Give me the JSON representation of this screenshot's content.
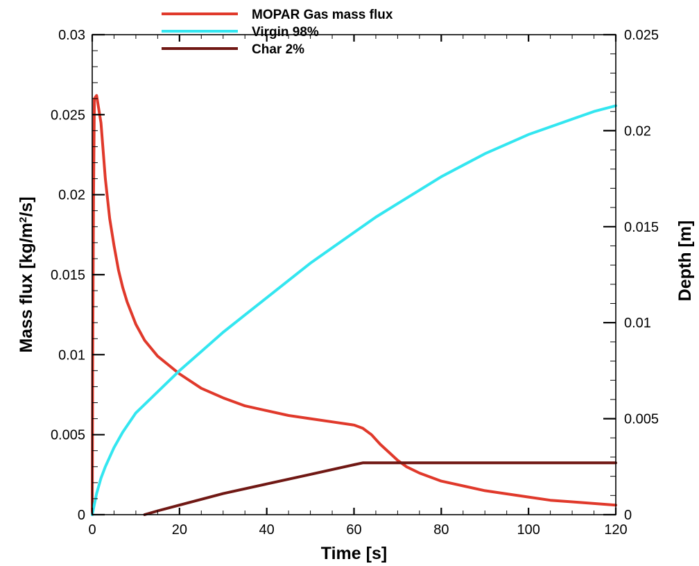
{
  "chart_data": {
    "type": "line",
    "xlabel": "Time [s]",
    "ylabel_left": {
      "prefix": "Mass flux [kg/m",
      "sup": "2",
      "suffix": "/s]"
    },
    "ylabel_right": "Depth [m]",
    "xlim": [
      0,
      120
    ],
    "ylim_left": [
      0,
      0.03
    ],
    "ylim_right": [
      0,
      0.025
    ],
    "x_ticks": [
      0,
      20,
      40,
      60,
      80,
      100,
      120
    ],
    "x_tick_labels": [
      "0",
      "20",
      "40",
      "60",
      "80",
      "100",
      "120"
    ],
    "y_left_ticks": [
      0,
      0.005,
      0.01,
      0.015,
      0.02,
      0.025,
      0.03
    ],
    "y_left_tick_labels": [
      "0",
      "0.005",
      "0.01",
      "0.015",
      "0.02",
      "0.025",
      "0.03"
    ],
    "y_right_ticks": [
      0,
      0.005,
      0.01,
      0.015,
      0.02,
      0.025
    ],
    "y_right_tick_labels": [
      "0",
      "0.005",
      "0.01",
      "0.015",
      "0.02",
      "0.025"
    ],
    "grid": false,
    "legend_position": "top-center",
    "series": [
      {
        "name": "MOPAR Gas mass flux",
        "axis": "left",
        "color": "#e0392b",
        "x": [
          0,
          0.1,
          0.3,
          0.5,
          1,
          2,
          3,
          4,
          5,
          6,
          7,
          8,
          10,
          12,
          15,
          20,
          25,
          30,
          35,
          40,
          45,
          50,
          55,
          60,
          62,
          64,
          66,
          68,
          70,
          72,
          75,
          80,
          85,
          90,
          95,
          100,
          105,
          110,
          115,
          120
        ],
        "y": [
          0,
          0.009,
          0.02,
          0.026,
          0.0262,
          0.0245,
          0.021,
          0.0185,
          0.0168,
          0.0153,
          0.0142,
          0.0133,
          0.0119,
          0.0109,
          0.0099,
          0.0088,
          0.0079,
          0.0073,
          0.0068,
          0.0065,
          0.0062,
          0.006,
          0.0058,
          0.0056,
          0.0054,
          0.005,
          0.0044,
          0.0039,
          0.0034,
          0.003,
          0.0026,
          0.0021,
          0.0018,
          0.0015,
          0.0013,
          0.0011,
          0.0009,
          0.0008,
          0.0007,
          0.0006
        ]
      },
      {
        "name": "Virgin 98%",
        "axis": "right",
        "color": "#33e6f0",
        "x": [
          0,
          1,
          2,
          3,
          5,
          7,
          10,
          15,
          20,
          25,
          30,
          35,
          40,
          45,
          50,
          55,
          60,
          65,
          70,
          75,
          80,
          85,
          90,
          95,
          100,
          105,
          110,
          115,
          120
        ],
        "y": [
          0,
          0.0011,
          0.0019,
          0.0025,
          0.0035,
          0.0043,
          0.0053,
          0.0064,
          0.0075,
          0.0085,
          0.0095,
          0.0104,
          0.0113,
          0.0122,
          0.0131,
          0.0139,
          0.0147,
          0.0155,
          0.0162,
          0.0169,
          0.0176,
          0.0182,
          0.0188,
          0.0193,
          0.0198,
          0.0202,
          0.0206,
          0.021,
          0.0213
        ]
      },
      {
        "name": "Char 2%",
        "axis": "right",
        "color": "#701814",
        "x": [
          12,
          15,
          20,
          30,
          40,
          50,
          60,
          62,
          65,
          70,
          80,
          90,
          100,
          110,
          120
        ],
        "y": [
          0,
          0.0002,
          0.0005,
          0.0011,
          0.0016,
          0.0021,
          0.0026,
          0.0027,
          0.0027,
          0.0027,
          0.0027,
          0.0027,
          0.0027,
          0.0027,
          0.0027
        ]
      }
    ]
  }
}
